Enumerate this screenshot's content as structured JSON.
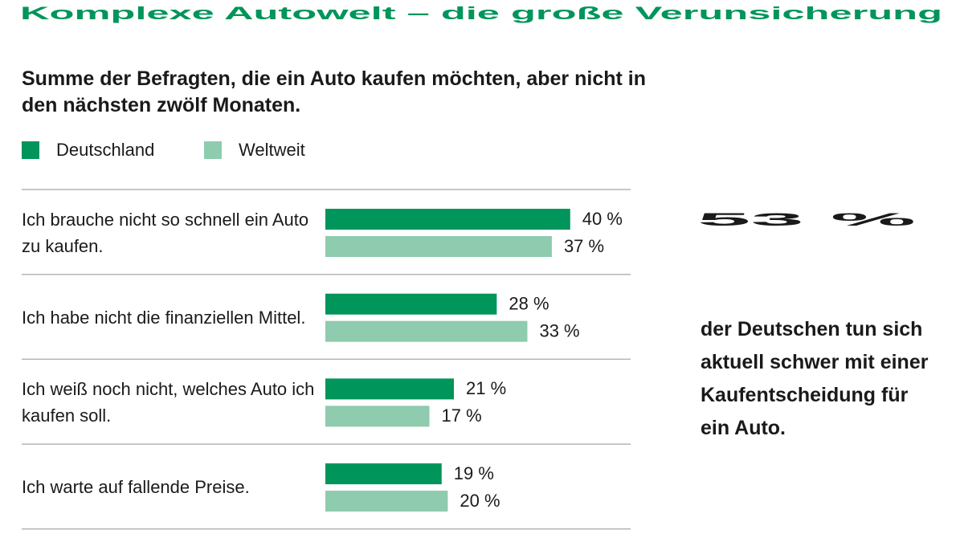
{
  "chart_data": {
    "type": "bar",
    "orientation": "horizontal",
    "title": "Komplexe Autowelt – die große Verunsicherung",
    "subtitle": "Summe der Befragten, die ein Auto kaufen möchten, aber nicht in den nächsten zwölf Monaten.",
    "categories": [
      "Ich brauche nicht so schnell ein Auto zu kaufen.",
      "Ich habe nicht die finanziellen Mittel.",
      "Ich weiß noch nicht, welches Auto ich kaufen soll.",
      "Ich warte auf fallende Preise."
    ],
    "series": [
      {
        "name": "Deutschland",
        "color": "#00955a",
        "values": [
          40,
          28,
          21,
          19
        ],
        "value_labels": [
          "40 %",
          "28 %",
          "21 %",
          "19 %"
        ]
      },
      {
        "name": "Weltweit",
        "color": "#8fcbae",
        "values": [
          37,
          33,
          17,
          20
        ],
        "value_labels": [
          "37 %",
          "33 %",
          "17 %",
          "20 %"
        ]
      }
    ],
    "highlight": {
      "value": 53,
      "label": "53 %"
    },
    "highlight_text": "der Deutschen tun sich aktuell schwer mit einer Kaufentscheidung für ein Auto."
  }
}
